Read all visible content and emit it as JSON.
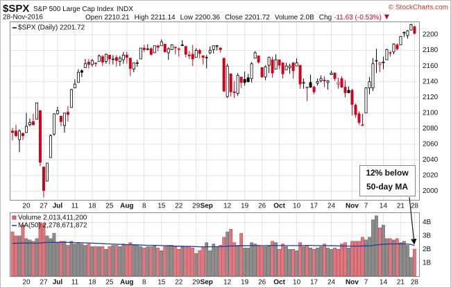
{
  "header": {
    "symbol": "$SPX",
    "name": "S&P 500 Large Cap Index",
    "exchange": "INDX",
    "brand": "© StockCharts.com",
    "date": "28-Nov-2016",
    "quote": [
      {
        "label": "Open",
        "value": "2210.21"
      },
      {
        "label": "High",
        "value": "2211.14"
      },
      {
        "label": "Low",
        "value": "2200.36"
      },
      {
        "label": "Close",
        "value": "2201.72"
      },
      {
        "label": "Volume",
        "value": "2.0B"
      }
    ],
    "change_label": "Chg",
    "change": "-11.63 (-0.53%)"
  },
  "chart_data": [
    {
      "type": "candlestick",
      "legend": "$SPX (Daily) 2201.72",
      "categories": [
        null,
        null,
        null,
        null,
        "20",
        null,
        null,
        null,
        null,
        "27",
        null,
        null,
        null,
        "Jul",
        null,
        null,
        null,
        null,
        "11",
        null,
        null,
        null,
        null,
        "18",
        null,
        null,
        null,
        null,
        "25",
        null,
        null,
        null,
        null,
        "Aug",
        null,
        null,
        null,
        null,
        "8",
        null,
        null,
        null,
        null,
        "15",
        null,
        null,
        null,
        null,
        "22",
        null,
        null,
        null,
        null,
        "29",
        null,
        null,
        "Sep",
        null,
        null,
        null,
        null,
        null,
        "12",
        null,
        null,
        null,
        null,
        "19",
        null,
        null,
        null,
        null,
        "26",
        null,
        null,
        null,
        null,
        "Oct",
        null,
        null,
        null,
        null,
        "10",
        null,
        null,
        null,
        null,
        "17",
        null,
        null,
        null,
        null,
        "24",
        null,
        null,
        null,
        null,
        null,
        "Nov",
        null,
        null,
        null,
        "7",
        null,
        null,
        null,
        null,
        "14",
        null,
        null,
        null,
        null,
        "21",
        null,
        null,
        null,
        "28"
      ],
      "open": [
        2077,
        2077,
        2066,
        2074,
        2075,
        2085,
        2089,
        2092,
        2103,
        2031,
        2013,
        2043,
        2073,
        2099,
        2096,
        2084,
        2101,
        2107,
        2132,
        2139,
        2154,
        2158,
        2165,
        2162,
        2164,
        2166,
        2172,
        2166,
        2174,
        2169,
        2171,
        2166,
        2168,
        2174,
        2170,
        2156,
        2164,
        2169,
        2183,
        2182,
        2182,
        2177,
        2186,
        2186,
        2188,
        2177,
        2181,
        2184,
        2182,
        2187,
        2185,
        2174,
        2175,
        2171,
        2180,
        2173,
        2171,
        2177,
        2181,
        2185,
        2183,
        2170,
        2121,
        2150,
        2127,
        2125,
        2146,
        2143,
        2145,
        2144,
        2170,
        2173,
        2158,
        2146,
        2161,
        2168,
        2156,
        2168,
        2164,
        2155,
        2158,
        2164,
        2160,
        2161,
        2138,
        2133,
        2139,
        2133,
        2138,
        2141,
        2142,
        2139,
        2149,
        2151,
        2137,
        2144,
        2133,
        2129,
        2129,
        2110,
        2099,
        2084,
        2100,
        2132,
        2132,
        2167,
        2162,
        2165,
        2168,
        2177,
        2178,
        2187,
        2187,
        2202,
        2199,
        2206,
        2210.21
      ],
      "high": [
        2081,
        2085,
        2079,
        2075,
        2100,
        2093,
        2099,
        2113,
        2103,
        2031,
        2036,
        2073,
        2099,
        2108,
        2096,
        2100,
        2109,
        2131,
        2143,
        2156,
        2156,
        2169,
        2169,
        2169,
        2164,
        2175,
        2174,
        2176,
        2174,
        2174,
        2174,
        2173,
        2178,
        2178,
        2171,
        2164,
        2168,
        2183,
        2187,
        2188,
        2184,
        2186,
        2186,
        2194,
        2188,
        2184,
        2188,
        2185,
        2184,
        2193,
        2186,
        2179,
        2187,
        2183,
        2182,
        2174,
        2174,
        2185,
        2186,
        2187,
        2184,
        2170,
        2163,
        2150,
        2141,
        2151,
        2146,
        2153,
        2150,
        2165,
        2179,
        2173,
        2158,
        2161,
        2172,
        2172,
        2175,
        2168,
        2165,
        2164,
        2163,
        2165,
        2170,
        2161,
        2144,
        2133,
        2149,
        2135,
        2144,
        2148,
        2147,
        2142,
        2154,
        2152,
        2145,
        2147,
        2142,
        2134,
        2131,
        2112,
        2102,
        2099,
        2133,
        2146,
        2170,
        2182,
        2165,
        2172,
        2182,
        2179,
        2189,
        2189,
        2198,
        2204,
        2206,
        2214,
        2211.14
      ],
      "low": [
        2065,
        2069,
        2050,
        2065,
        2075,
        2083,
        2084,
        2092,
        2032,
        1992,
        2013,
        2043,
        2071,
        2098,
        2083,
        2075,
        2089,
        2107,
        2132,
        2139,
        2146,
        2158,
        2157,
        2159,
        2159,
        2166,
        2160,
        2163,
        2162,
        2162,
        2159,
        2160,
        2163,
        2163,
        2147,
        2152,
        2159,
        2169,
        2178,
        2180,
        2173,
        2177,
        2179,
        2186,
        2178,
        2168,
        2181,
        2175,
        2172,
        2186,
        2171,
        2169,
        2160,
        2171,
        2170,
        2162,
        2157,
        2175,
        2176,
        2180,
        2177,
        2127,
        2119,
        2121,
        2119,
        2122,
        2132,
        2135,
        2139,
        2139,
        2170,
        2163,
        2145,
        2142,
        2151,
        2145,
        2156,
        2156,
        2144,
        2155,
        2150,
        2144,
        2160,
        2131,
        2131,
        2115,
        2132,
        2124,
        2135,
        2139,
        2133,
        2130,
        2149,
        2141,
        2131,
        2132,
        2120,
        2125,
        2097,
        2094,
        2085,
        2083,
        2100,
        2124,
        2128,
        2151,
        2152,
        2156,
        2168,
        2172,
        2175,
        2180,
        2187,
        2197,
        2195,
        2206,
        2200.36
      ],
      "close": [
        2075,
        2071,
        2077,
        2071,
        2083,
        2088,
        2085,
        2113,
        2037,
        2001,
        2036,
        2071,
        2099,
        2103,
        2089,
        2100,
        2098,
        2130,
        2137,
        2152,
        2152,
        2163,
        2162,
        2167,
        2163,
        2173,
        2165,
        2175,
        2169,
        2169,
        2167,
        2170,
        2174,
        2171,
        2157,
        2164,
        2164,
        2183,
        2181,
        2182,
        2175,
        2186,
        2184,
        2191,
        2178,
        2182,
        2187,
        2184,
        2182,
        2186,
        2175,
        2173,
        2169,
        2180,
        2176,
        2171,
        2171,
        2180,
        2186,
        2186,
        2181,
        2128,
        2160,
        2127,
        2126,
        2148,
        2139,
        2139,
        2140,
        2163,
        2177,
        2165,
        2146,
        2159,
        2171,
        2151,
        2168,
        2161,
        2150,
        2160,
        2160,
        2154,
        2164,
        2137,
        2139,
        2133,
        2133,
        2127,
        2140,
        2144,
        2141,
        2141,
        2151,
        2144,
        2139,
        2133,
        2126,
        2126,
        2111,
        2098,
        2088,
        2085,
        2132,
        2140,
        2163,
        2167,
        2164,
        2165,
        2181,
        2177,
        2188,
        2182,
        2198,
        2203,
        2205,
        2213,
        2201.72
      ],
      "ylim": [
        1989,
        2216
      ],
      "yticks": [
        2000,
        2020,
        2040,
        2060,
        2080,
        2100,
        2120,
        2140,
        2160,
        2180,
        2200
      ],
      "grid": true,
      "up_color": "#000000",
      "down_color": "#d0021b",
      "annotation": [
        "12% below",
        "50-day MA"
      ]
    },
    {
      "type": "bar",
      "categories": [
        null,
        null,
        null,
        null,
        "20",
        null,
        null,
        null,
        null,
        "27",
        null,
        null,
        null,
        "Jul",
        null,
        null,
        null,
        null,
        "11",
        null,
        null,
        null,
        null,
        "18",
        null,
        null,
        null,
        null,
        "25",
        null,
        null,
        null,
        null,
        "Aug",
        null,
        null,
        null,
        null,
        "8",
        null,
        null,
        null,
        null,
        "15",
        null,
        null,
        null,
        null,
        "22",
        null,
        null,
        null,
        null,
        "29",
        null,
        null,
        "Sep",
        null,
        null,
        null,
        null,
        null,
        "12",
        null,
        null,
        null,
        null,
        "19",
        null,
        null,
        null,
        null,
        "26",
        null,
        null,
        null,
        null,
        "Oct",
        null,
        null,
        null,
        null,
        "10",
        null,
        null,
        null,
        null,
        "17",
        null,
        null,
        null,
        null,
        "24",
        null,
        null,
        null,
        null,
        null,
        "Nov",
        null,
        null,
        null,
        "7",
        null,
        null,
        null,
        null,
        "14",
        null,
        null,
        null,
        null,
        "21",
        null,
        null,
        null,
        "28"
      ],
      "series": [
        {
          "name": "Volume 2,013,411,200",
          "up_color": "#8c8c8c",
          "down_color": "#e0787f",
          "values": [
            3300000000.0,
            3000000000.0,
            3000000000.0,
            3800000000.0,
            2800000000.0,
            2700000000.0,
            2600000000.0,
            2800000000.0,
            4000000000.0,
            3900000000.0,
            3000000000.0,
            2800000000.0,
            3200000000.0,
            2500000000.0,
            2600000000.0,
            2600000000.0,
            2300000000.0,
            2600000000.0,
            2400000000.0,
            2500000000.0,
            2400000000.0,
            2300000000.0,
            2400000000.0,
            2200000000.0,
            2200000000.0,
            2200000000.0,
            2200000000.0,
            2000000000.0,
            2200000000.0,
            2300000000.0,
            2300000000.0,
            2200000000.0,
            2400000000.0,
            2300000000.0,
            2500000000.0,
            2300000000.0,
            2300000000.0,
            2200000000.0,
            2100000000.0,
            2200000000.0,
            2200000000.0,
            2300000000.0,
            2100000000.0,
            1900000000.0,
            2200000000.0,
            2300000000.0,
            2300000000.0,
            2200000000.0,
            2000000000.0,
            2200000000.0,
            2200000000.0,
            2200000000.0,
            2100000000.0,
            1700000000.0,
            1900000000.0,
            2200000000.0,
            2500000000.0,
            1900000000.0,
            2400000000.0,
            2200000000.0,
            2300000000.0,
            2900000000.0,
            3300000000.0,
            3500000000.0,
            2500000000.0,
            2300000000.0,
            3200000000.0,
            2100000000.0,
            2100000000.0,
            2500000000.0,
            2400000000.0,
            2300000000.0,
            2200000000.0,
            2200000000.0,
            2300000000.0,
            2600000000.0,
            2500000000.0,
            2000000000.0,
            2400000000.0,
            2200000000.0,
            2000000000.0,
            2000000000.0,
            1900000000.0,
            2500000000.0,
            2200000000.0,
            2300000000.0,
            2100000000.0,
            2000000000.0,
            2100000000.0,
            2200000000.0,
            2400000000.0,
            2100000000.0,
            2000000000.0,
            2100000000.0,
            2000000000.0,
            2400000000.0,
            2500000000.0,
            2100000000.0,
            2600000000.0,
            2600000000.0,
            2600000000.0,
            2900000000.0,
            2700000000.0,
            2900000000.0,
            4200000000.0,
            4500000000.0,
            3600000000.0,
            3800000000.0,
            2800000000.0,
            2800000000.0,
            2700000000.0,
            2800000000.0,
            2500000000.0,
            2600000000.0,
            2300000000.0,
            1400000000.0,
            2013411200
          ]
        },
        {
          "name": "MA(50) 2,278,671,872",
          "type": "line",
          "color": "#1f3a9a",
          "values": [
            2450000000.0,
            2450000000.0,
            2460000000.0,
            2470000000.0,
            2470000000.0,
            2470000000.0,
            2460000000.0,
            2460000000.0,
            2470000000.0,
            2500000000.0,
            2510000000.0,
            2510000000.0,
            2520000000.0,
            2520000000.0,
            2520000000.0,
            2510000000.0,
            2510000000.0,
            2510000000.0,
            2500000000.0,
            2500000000.0,
            2490000000.0,
            2480000000.0,
            2470000000.0,
            2460000000.0,
            2450000000.0,
            2440000000.0,
            2430000000.0,
            2410000000.0,
            2400000000.0,
            2390000000.0,
            2380000000.0,
            2370000000.0,
            2360000000.0,
            2350000000.0,
            2350000000.0,
            2340000000.0,
            2330000000.0,
            2320000000.0,
            2310000000.0,
            2300000000.0,
            2300000000.0,
            2300000000.0,
            2290000000.0,
            2280000000.0,
            2270000000.0,
            2260000000.0,
            2250000000.0,
            2240000000.0,
            2230000000.0,
            2230000000.0,
            2220000000.0,
            2220000000.0,
            2210000000.0,
            2200000000.0,
            2190000000.0,
            2190000000.0,
            2190000000.0,
            2190000000.0,
            2190000000.0,
            2200000000.0,
            2200000000.0,
            2210000000.0,
            2230000000.0,
            2250000000.0,
            2250000000.0,
            2260000000.0,
            2270000000.0,
            2270000000.0,
            2270000000.0,
            2280000000.0,
            2280000000.0,
            2280000000.0,
            2280000000.0,
            2280000000.0,
            2280000000.0,
            2280000000.0,
            2280000000.0,
            2280000000.0,
            2280000000.0,
            2280000000.0,
            2280000000.0,
            2280000000.0,
            2280000000.0,
            2280000000.0,
            2290000000.0,
            2290000000.0,
            2290000000.0,
            2280000000.0,
            2280000000.0,
            2280000000.0,
            2280000000.0,
            2270000000.0,
            2270000000.0,
            2270000000.0,
            2260000000.0,
            2250000000.0,
            2250000000.0,
            2240000000.0,
            2240000000.0,
            2240000000.0,
            2240000000.0,
            2250000000.0,
            2250000000.0,
            2260000000.0,
            2290000000.0,
            2330000000.0,
            2350000000.0,
            2380000000.0,
            2390000000.0,
            2400000000.0,
            2400000000.0,
            2400000000.0,
            2400000000.0,
            2400000000.0,
            2390000000.0,
            2360000000.0,
            2278671872
          ]
        }
      ],
      "ylim": [
        0,
        4700000000.0
      ],
      "yticks": [
        {
          "value": 1000000000.0,
          "label": "1B"
        },
        {
          "value": 2000000000.0,
          "label": "2B"
        },
        {
          "value": 3000000000.0,
          "label": "3B"
        },
        {
          "value": 4000000000.0,
          "label": "4B"
        }
      ],
      "grid": true
    }
  ]
}
